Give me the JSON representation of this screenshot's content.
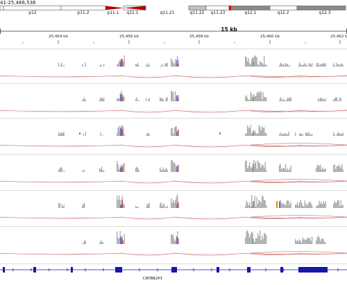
{
  "locus": "41-25,466,536",
  "chromosome": {
    "bands": [
      "p12",
      "p11.2",
      "p11.1",
      "q11.1",
      "q11.21",
      "q11.22",
      "q11.23",
      "q12.1",
      "q12.2",
      "q12.3"
    ]
  },
  "ruler": {
    "span": "15 kb",
    "ticks": [
      "25,454 kb",
      "25,456 kb",
      "25,458 kb",
      "25,460 kb",
      "25,462 kb"
    ]
  },
  "tracks": [
    {
      "name": "sample-1"
    },
    {
      "name": "sample-2"
    },
    {
      "name": "sample-3"
    },
    {
      "name": "sample-4"
    },
    {
      "name": "sample-5"
    },
    {
      "name": "sample-6"
    }
  ],
  "gene": {
    "name": "CRYBB2P1"
  },
  "colors": {
    "coverage": "#a8a8a8",
    "arc": "#c24a4a",
    "gene": "#1616a8",
    "centromere": "#b00000",
    "mismatch_a": "#4a73d9",
    "mismatch_b": "#d94a4a",
    "mismatch_c": "#4aa84a",
    "mismatch_d": "#d98a2a"
  }
}
